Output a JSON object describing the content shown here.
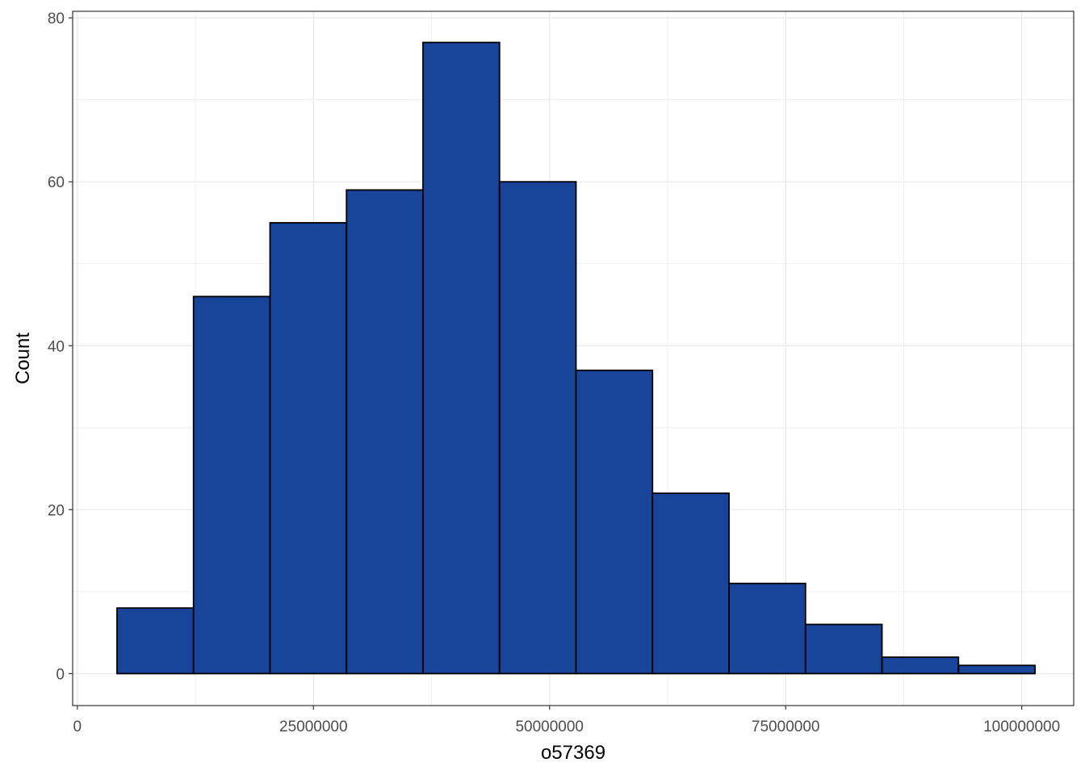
{
  "chart_data": {
    "type": "bar",
    "subtype": "histogram",
    "xlabel": "o57369",
    "ylabel": "Count",
    "xlim": [
      -500000,
      105500000
    ],
    "ylim": [
      -3.9,
      80.8
    ],
    "x_ticks": [
      {
        "value": 0,
        "label": "0"
      },
      {
        "value": 25000000,
        "label": "25000000"
      },
      {
        "value": 50000000,
        "label": "50000000"
      },
      {
        "value": 75000000,
        "label": "75000000"
      },
      {
        "value": 100000000,
        "label": "100000000"
      }
    ],
    "y_ticks": [
      {
        "value": 0,
        "label": "0"
      },
      {
        "value": 20,
        "label": "20"
      },
      {
        "value": 40,
        "label": "40"
      },
      {
        "value": 60,
        "label": "60"
      },
      {
        "value": 80,
        "label": "80"
      }
    ],
    "bins": [
      {
        "x0": 4200000,
        "x1": 12300000,
        "count": 8
      },
      {
        "x0": 12300000,
        "x1": 20400000,
        "count": 46
      },
      {
        "x0": 20400000,
        "x1": 28500000,
        "count": 55
      },
      {
        "x0": 28500000,
        "x1": 36600000,
        "count": 59
      },
      {
        "x0": 36600000,
        "x1": 44700000,
        "count": 77
      },
      {
        "x0": 44700000,
        "x1": 52800000,
        "count": 60
      },
      {
        "x0": 52800000,
        "x1": 60900000,
        "count": 37
      },
      {
        "x0": 60900000,
        "x1": 69000000,
        "count": 22
      },
      {
        "x0": 69000000,
        "x1": 77100000,
        "count": 11
      },
      {
        "x0": 77100000,
        "x1": 85200000,
        "count": 6
      },
      {
        "x0": 85200000,
        "x1": 93300000,
        "count": 2
      },
      {
        "x0": 93300000,
        "x1": 101400000,
        "count": 1
      }
    ],
    "grid": true,
    "colors": {
      "bar_fill": "#184499",
      "bar_stroke": "#000000",
      "grid": "#ebebeb",
      "panel_border": "#333333"
    }
  }
}
